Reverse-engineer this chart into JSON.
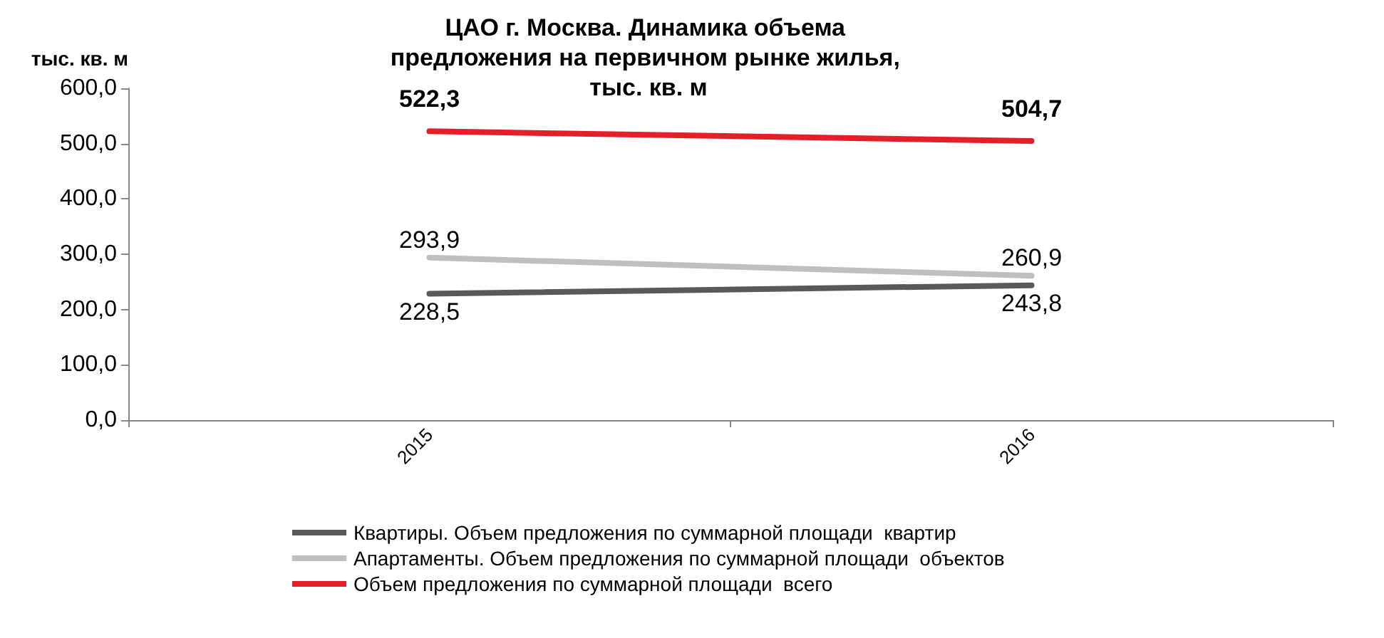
{
  "chart_data": {
    "type": "line",
    "title": "ЦАО г. Москва. Динамика объема предложения на первичном рынке жилья, тыс. кв. м",
    "ylabel": "тыс. кв. м",
    "categories": [
      "2015",
      "2016"
    ],
    "series": [
      {
        "name": "Квартиры. Объем предложения по суммарной площади  квартир",
        "color": "#595959",
        "values": [
          228.5,
          243.8
        ],
        "value_labels": [
          "228,5",
          "243,8"
        ]
      },
      {
        "name": "Апартаменты. Объем предложения по суммарной площади  объектов",
        "color": "#bfbfbf",
        "values": [
          293.9,
          260.9
        ],
        "value_labels": [
          "293,9",
          "260,9"
        ]
      },
      {
        "name": "Объем предложения по суммарной площади  всего",
        "color": "#e3202a",
        "values": [
          522.3,
          504.7
        ],
        "value_labels": [
          "522,3",
          "504,7"
        ]
      }
    ],
    "ylim": [
      0,
      600
    ],
    "yticks": [
      {
        "value": 0,
        "label": "0,0"
      },
      {
        "value": 100,
        "label": "100,0"
      },
      {
        "value": 200,
        "label": "200,0"
      },
      {
        "value": 300,
        "label": "300,0"
      },
      {
        "value": 400,
        "label": "400,0"
      },
      {
        "value": 500,
        "label": "500,0"
      },
      {
        "value": 600,
        "label": "600,0"
      }
    ],
    "grid": false,
    "legend": "bottom",
    "marker": "none",
    "line_style": "solid"
  }
}
